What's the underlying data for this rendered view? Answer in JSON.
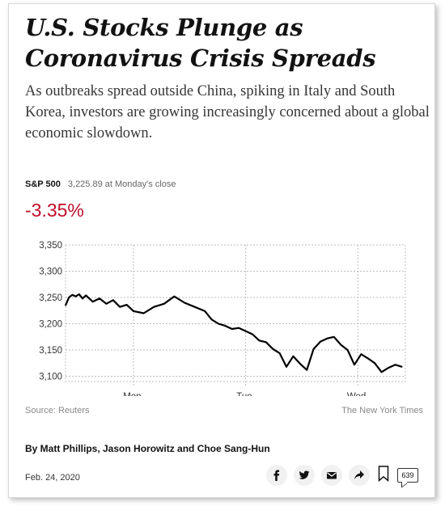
{
  "article": {
    "headline": "U.S. Stocks Plunge as Coronavirus Crisis Spreads",
    "summary": "As outbreaks spread outside China, spiking in Italy and South Korea, investors are growing increasingly concerned about a global economic slowdown.",
    "byline": "By Matt Phillips, Jason Horowitz and Choe Sang-Hun",
    "date": "Feb. 24, 2020"
  },
  "ticker": {
    "name": "S&P 500",
    "price_note": "3,225.89 at Monday's close",
    "change": "-3.35%",
    "change_color": "#c00e2b"
  },
  "chart_data": {
    "type": "line",
    "title": "",
    "xlabel": "",
    "ylabel": "",
    "ylim": [
      3090,
      3350
    ],
    "yticks": [
      3100,
      3150,
      3200,
      3250,
      3300,
      3350
    ],
    "ytick_labels": [
      "3,100",
      "3,150",
      "3,200",
      "3,250",
      "3,300",
      "3,350"
    ],
    "xlim": [
      0,
      100
    ],
    "xticks": [
      {
        "x": 20,
        "label": "Mon."
      },
      {
        "x": 53,
        "label": "Tue."
      },
      {
        "x": 86,
        "label": "Wed."
      }
    ],
    "x": [
      0,
      1,
      2,
      3,
      4,
      5,
      6,
      8,
      10,
      12,
      14,
      16,
      18,
      20,
      23,
      26,
      29,
      32,
      35,
      38,
      41,
      43,
      45,
      47,
      49,
      51,
      53,
      55,
      57,
      59,
      61,
      63,
      65,
      67,
      69,
      71,
      73,
      75,
      77,
      79,
      81,
      83,
      85,
      87,
      89,
      91,
      93,
      95,
      97,
      99
    ],
    "y": [
      3235,
      3250,
      3255,
      3252,
      3256,
      3248,
      3254,
      3242,
      3248,
      3238,
      3245,
      3232,
      3236,
      3224,
      3220,
      3232,
      3238,
      3252,
      3240,
      3232,
      3224,
      3208,
      3200,
      3196,
      3190,
      3192,
      3186,
      3180,
      3168,
      3165,
      3152,
      3144,
      3118,
      3138,
      3124,
      3112,
      3152,
      3166,
      3172,
      3175,
      3160,
      3150,
      3122,
      3142,
      3134,
      3125,
      3108,
      3116,
      3122,
      3118
    ],
    "series": [
      {
        "values_ref": "y",
        "color": "#000000"
      }
    ],
    "grid": true,
    "source": "Source: Reuters",
    "credit": "The New York Times"
  },
  "share": {
    "icons": [
      "facebook-icon",
      "twitter-icon",
      "email-icon",
      "share-arrow-icon",
      "bookmark-icon"
    ],
    "comment_count": "639"
  }
}
